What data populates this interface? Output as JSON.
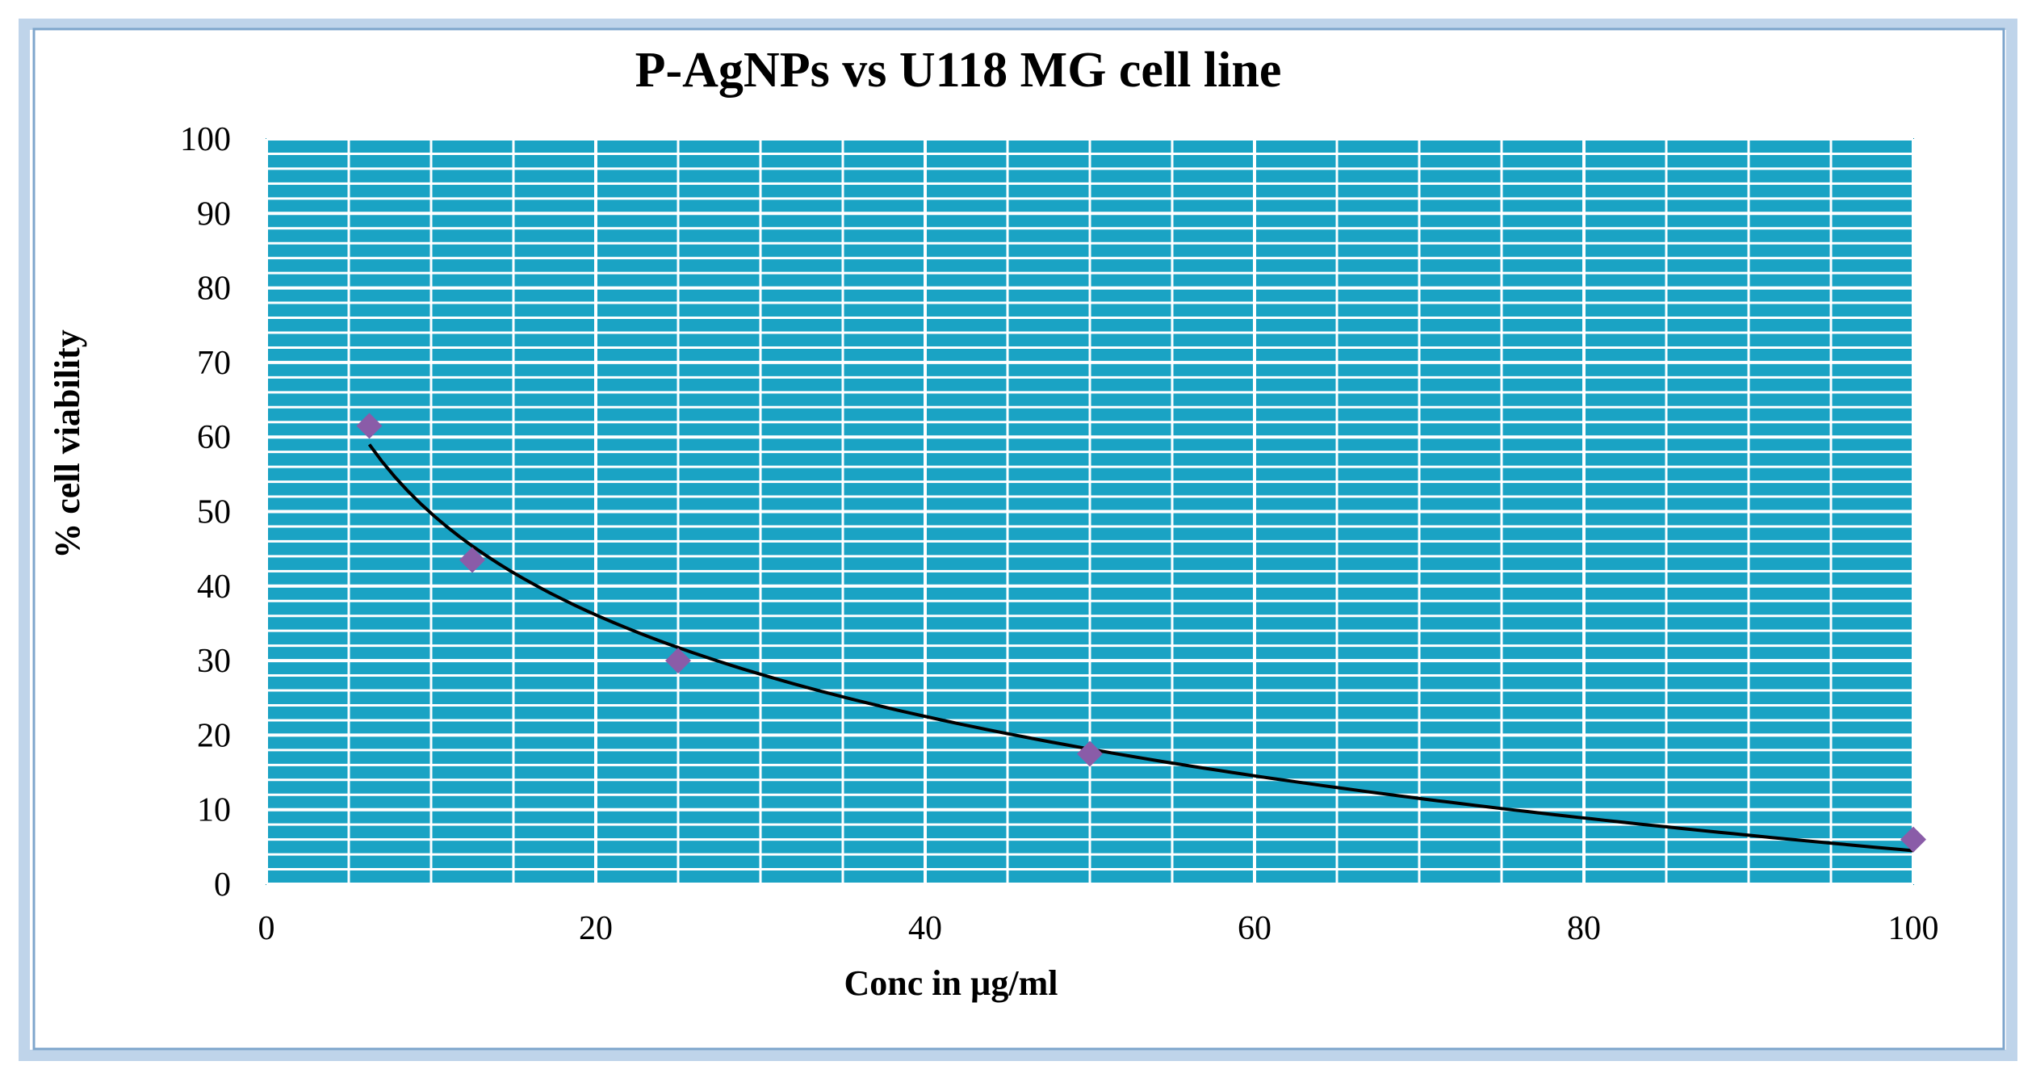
{
  "colors": {
    "plot_background": "#1AA3C4",
    "plot_background_stroke": "#0E8FAF",
    "gridline": "#FFFFFF",
    "marker": "#8A5CA8",
    "trendline": "#000000",
    "frame_border": "#7FA6CC",
    "frame_shadow": "#BFD4EA",
    "text": "#000000"
  },
  "chart_data": {
    "type": "scatter",
    "title": "P-AgNPs vs U118 MG cell line",
    "xlabel": "Conc in  µg/ml",
    "ylabel": "%  cell  viability",
    "xlim": [
      0,
      100
    ],
    "ylim": [
      0,
      100
    ],
    "x_major_step": 20,
    "x_minor_step": 5,
    "y_major_step": 10,
    "y_minor_step": 2,
    "grid": true,
    "x_ticks": [
      "0",
      "20",
      "40",
      "60",
      "80",
      "100"
    ],
    "y_ticks": [
      "0",
      "10",
      "20",
      "30",
      "40",
      "50",
      "60",
      "70",
      "80",
      "90",
      "100"
    ],
    "series": [
      {
        "name": "% cell viability",
        "marker": "diamond",
        "x": [
          6.25,
          12.5,
          25,
          50,
          100
        ],
        "y": [
          61.5,
          43.5,
          30,
          17.5,
          6
        ]
      }
    ],
    "trendline": {
      "type": "logarithmic",
      "x_start": 6.25,
      "x_end": 100,
      "y_at_start": 59,
      "y_at_end": 4.5
    }
  }
}
